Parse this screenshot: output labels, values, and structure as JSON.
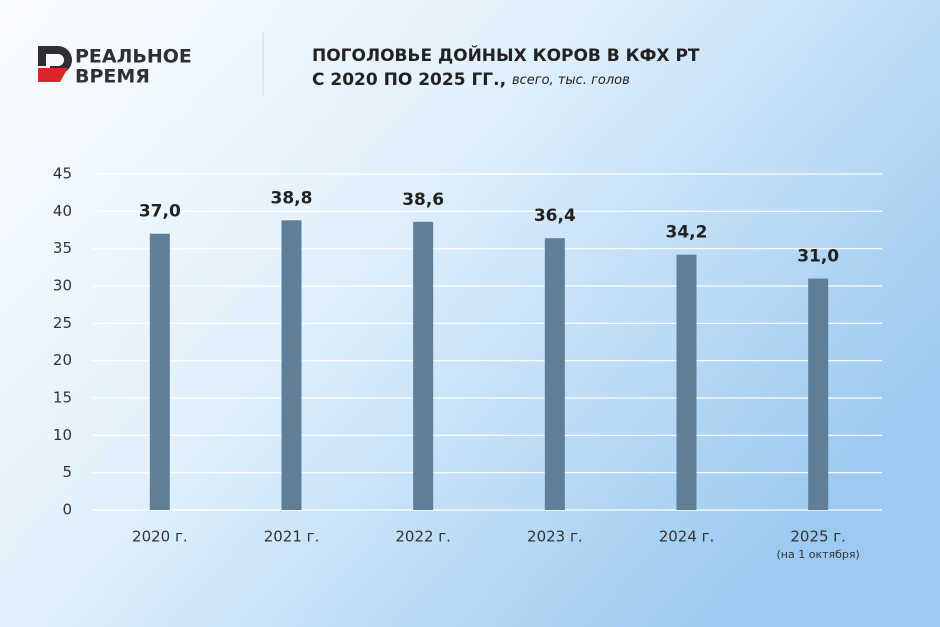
{
  "logo": [
    "РЕАЛЬНОЕ",
    "ВРЕМЯ"
  ],
  "chart_data": {
    "type": "bar",
    "title": [
      "ПОГОЛОВЬЕ ДОЙНЫХ КОРОВ В КФХ РТ",
      "С 2020 ПО 2025 ГГ.,"
    ],
    "subtitle": "всего, тыс. голов",
    "categories": [
      "2020 г.",
      "2021 г.",
      "2022 г.",
      "2023 г.",
      "2024 г.",
      "2025 г."
    ],
    "category_notes": [
      null,
      null,
      null,
      null,
      null,
      "(на 1 октября)"
    ],
    "values": [
      37.0,
      38.8,
      38.6,
      36.4,
      34.2,
      31.0
    ],
    "value_labels": [
      "37,0",
      "38,8",
      "38,6",
      "36,4",
      "34,2",
      "31,0"
    ],
    "color": "#5f7f99",
    "ylim": [
      0,
      45
    ],
    "yticks": [
      0,
      5,
      10,
      15,
      20,
      25,
      30,
      35,
      40,
      45
    ],
    "grid": true
  }
}
